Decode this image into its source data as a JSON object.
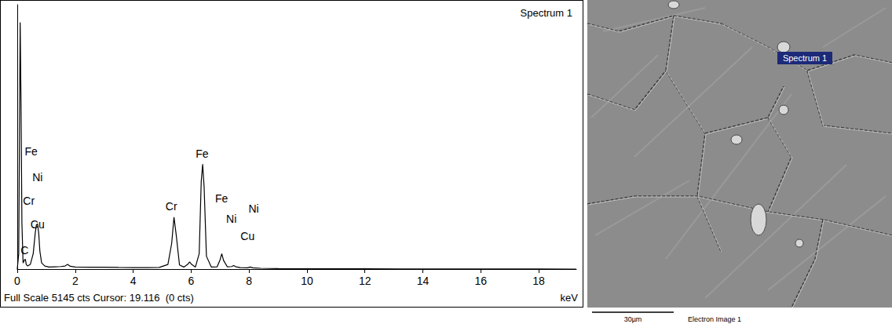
{
  "chart_data": {
    "type": "line",
    "title": "Spectrum 1",
    "x_label": "keV",
    "footer": "Full Scale 5145 cts Cursor: 19.116  (0 cts)",
    "x": [
      0,
      0.05,
      0.1,
      0.13,
      0.16,
      0.2,
      0.25,
      0.28,
      0.31,
      0.36,
      0.45,
      0.55,
      0.62,
      0.66,
      0.7,
      0.74,
      0.78,
      0.84,
      0.95,
      1.1,
      1.3,
      1.5,
      1.65,
      1.74,
      1.83,
      2.0,
      2.5,
      3.0,
      3.5,
      4.0,
      4.5,
      4.9,
      5.2,
      5.33,
      5.41,
      5.49,
      5.6,
      5.75,
      5.88,
      5.95,
      6.02,
      6.15,
      6.28,
      6.35,
      6.4,
      6.45,
      6.53,
      6.7,
      6.9,
      7.0,
      7.06,
      7.12,
      7.25,
      7.4,
      7.47,
      7.55,
      7.7,
      7.95,
      8.04,
      8.13,
      8.4,
      9.0,
      10,
      12,
      14,
      16,
      18,
      19.3
    ],
    "values": [
      0,
      300,
      4800,
      3200,
      900,
      120,
      180,
      190,
      90,
      60,
      90,
      300,
      700,
      860,
      880,
      700,
      350,
      120,
      60,
      40,
      45,
      50,
      60,
      90,
      55,
      40,
      35,
      35,
      32,
      30,
      30,
      32,
      90,
      500,
      1010,
      650,
      80,
      40,
      90,
      140,
      90,
      40,
      300,
      1700,
      2040,
      1600,
      250,
      40,
      45,
      180,
      300,
      170,
      45,
      50,
      70,
      45,
      30,
      25,
      40,
      25,
      15,
      10,
      8,
      5,
      3,
      2,
      1,
      0
    ],
    "color": "#000000",
    "xlim": [
      0,
      19.3
    ],
    "xticks": [
      0,
      2,
      4,
      6,
      8,
      10,
      12,
      14,
      16,
      18
    ],
    "ylim": [
      0,
      5145
    ],
    "tick_labels": "x",
    "grid": false,
    "annotations": [
      {
        "text": "Fe",
        "x": 0.48,
        "y": 2290
      },
      {
        "text": "Ni",
        "x": 0.7,
        "y": 1786
      },
      {
        "text": "Cr",
        "x": 0.4,
        "y": 1328
      },
      {
        "text": "Cu",
        "x": 0.7,
        "y": 870
      },
      {
        "text": "C",
        "x": 0.25,
        "y": 366
      },
      {
        "text": "Cr",
        "x": 5.32,
        "y": 1220
      },
      {
        "text": "Fe",
        "x": 6.38,
        "y": 2245
      },
      {
        "text": "Fe",
        "x": 7.05,
        "y": 1374
      },
      {
        "text": "Ni",
        "x": 7.39,
        "y": 977
      },
      {
        "text": "Ni",
        "x": 8.16,
        "y": 1176
      },
      {
        "text": "Cu",
        "x": 7.95,
        "y": 641
      }
    ]
  },
  "electron_image": {
    "marker_label": "Spectrum 1",
    "scale_bar": "30µm",
    "caption": "Electron Image 1"
  }
}
